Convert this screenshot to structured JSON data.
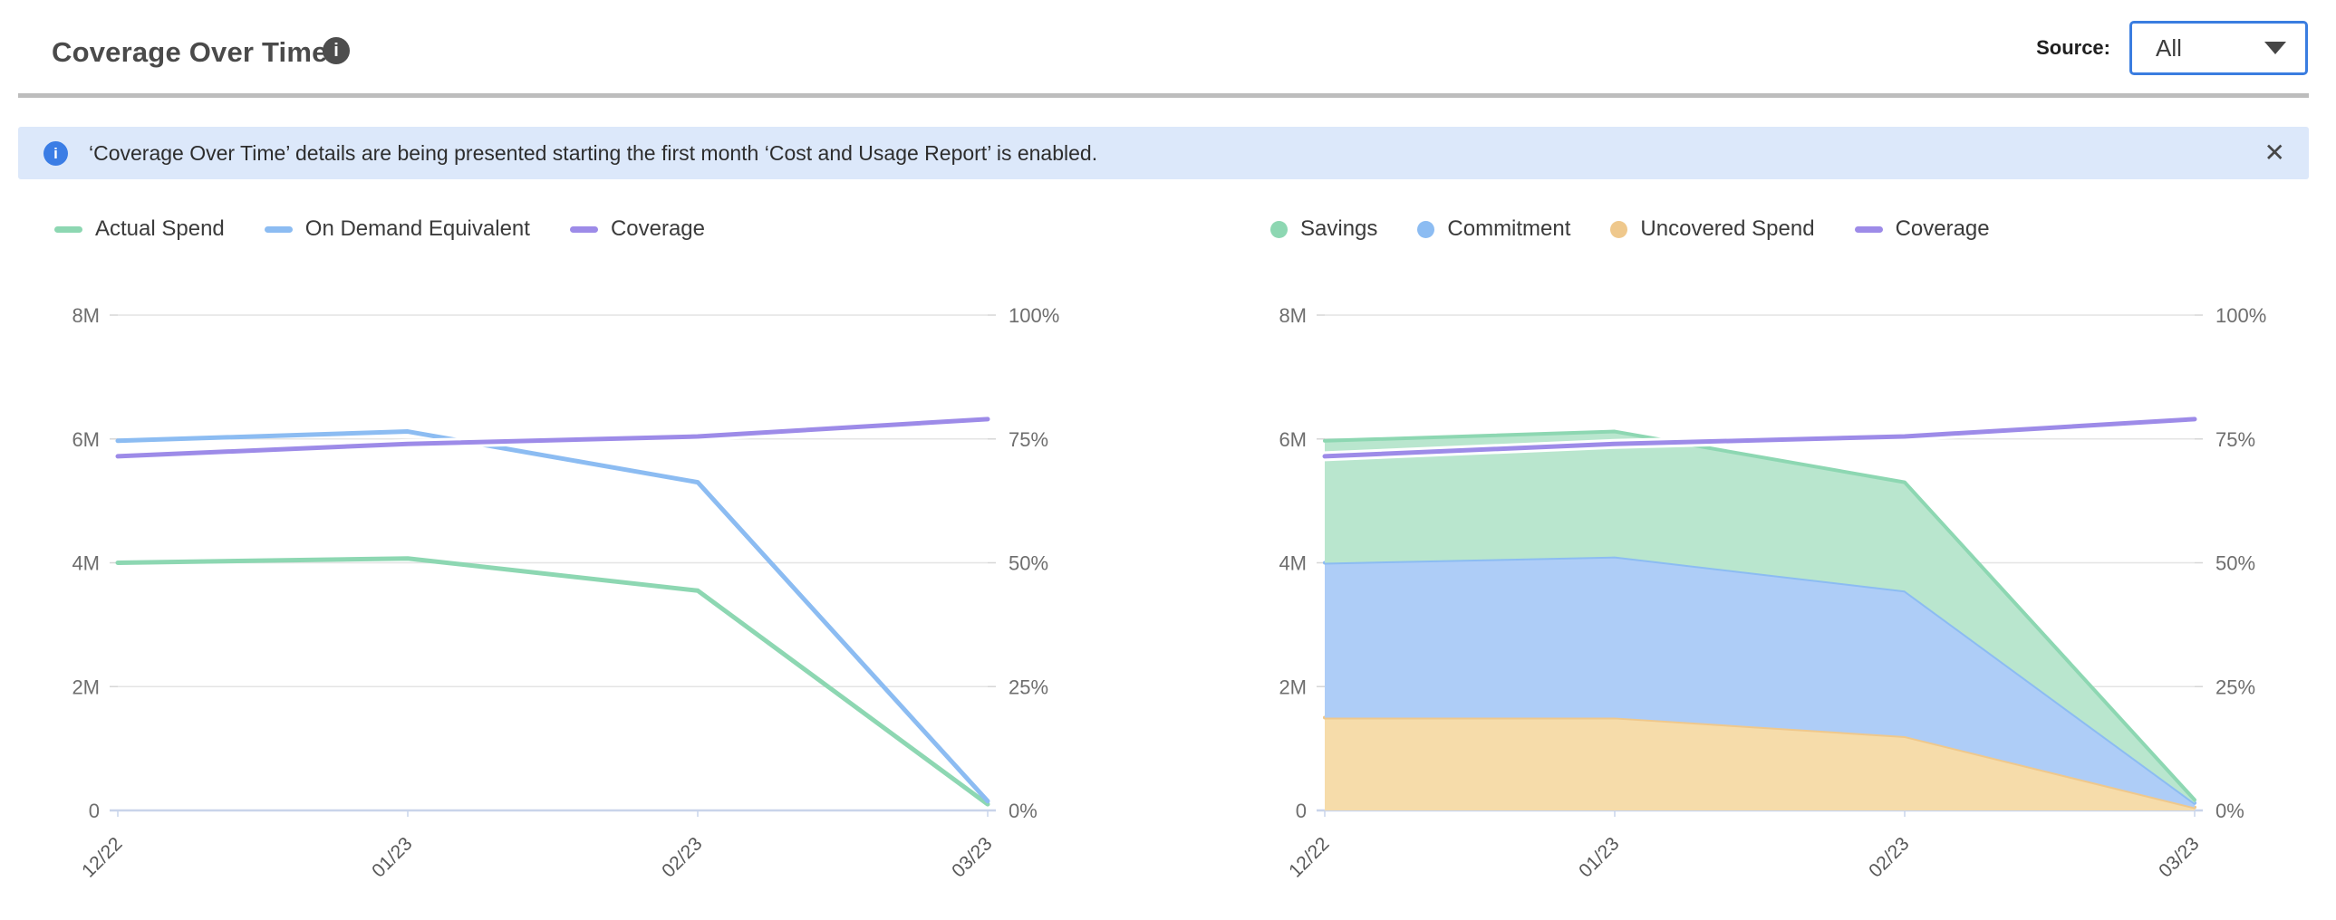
{
  "header": {
    "title": "Coverage Over Time",
    "source_label": "Source:",
    "source_value": "All"
  },
  "banner": {
    "text": "‘Coverage Over Time’ details are being presented starting the first month ‘Cost and Usage Report’ is enabled.",
    "close_glyph": "✕"
  },
  "colors": {
    "accent_blue": "#3a7de0",
    "banner_background": "#dce8fa",
    "banner_icon_blue": "#3b7de5",
    "title_text": "#4a4a4a",
    "divider_gray": "#bdbdbd",
    "gridline": "#e4e4e4",
    "baseline_axis": "#c9d4ea"
  },
  "chart_data": [
    {
      "type": "line",
      "title": "Coverage Over Time - spend lines",
      "x": [
        "12/22",
        "01/23",
        "02/23",
        "03/23"
      ],
      "series": [
        {
          "name": "Actual Spend",
          "yaxis": "left",
          "unit": "M",
          "color": "#8dd7b2",
          "values_millions": [
            4.0,
            4.07,
            3.55,
            0.1
          ]
        },
        {
          "name": "On Demand Equivalent",
          "yaxis": "left",
          "unit": "M",
          "color": "#8cbcf2",
          "values_millions": [
            5.97,
            6.12,
            5.3,
            0.15
          ]
        },
        {
          "name": "Coverage",
          "yaxis": "right",
          "unit": "%",
          "color": "#9d8be8",
          "values_percent": [
            71.5,
            74,
            75.5,
            79
          ]
        }
      ],
      "left_axis": {
        "max_millions": 8,
        "ticks": [
          {
            "value": 8,
            "label": "8M"
          },
          {
            "value": 6,
            "label": "6M"
          },
          {
            "value": 4,
            "label": "4M"
          },
          {
            "value": 2,
            "label": "2M"
          },
          {
            "value": 0,
            "label": "0"
          }
        ]
      },
      "right_axis": {
        "max_percent": 100,
        "ticks": [
          {
            "value": 100,
            "label": "100%"
          },
          {
            "value": 75,
            "label": "75%"
          },
          {
            "value": 50,
            "label": "50%"
          },
          {
            "value": 25,
            "label": "25%"
          },
          {
            "value": 0,
            "label": "0%"
          }
        ]
      },
      "grid": true,
      "legend_position": "top-left"
    },
    {
      "type": "area",
      "stacked": true,
      "title": "Coverage Over Time - savings breakdown",
      "x": [
        "12/22",
        "01/23",
        "02/23",
        "03/23"
      ],
      "series": [
        {
          "name": "Uncovered Spend",
          "yaxis": "left",
          "unit": "M",
          "color": "#efc88c",
          "fill": "#f6dcaa",
          "values_millions": [
            1.5,
            1.5,
            1.2,
            0.05
          ]
        },
        {
          "name": "Commitment",
          "yaxis": "left",
          "unit": "M",
          "color": "#8cbcf2",
          "fill": "#aecdf7",
          "values_millions": [
            2.5,
            2.6,
            2.35,
            0.07
          ]
        },
        {
          "name": "Savings",
          "yaxis": "left",
          "unit": "M",
          "color": "#8dd7b2",
          "fill": "#b9e6ce",
          "values_millions": [
            1.97,
            2.02,
            1.75,
            0.05
          ]
        },
        {
          "name": "Coverage",
          "yaxis": "right",
          "unit": "%",
          "color": "#9d8be8",
          "values_percent": [
            71.5,
            74,
            75.5,
            79
          ]
        }
      ],
      "left_axis": {
        "max_millions": 8,
        "ticks": [
          {
            "value": 8,
            "label": "8M"
          },
          {
            "value": 6,
            "label": "6M"
          },
          {
            "value": 4,
            "label": "4M"
          },
          {
            "value": 2,
            "label": "2M"
          },
          {
            "value": 0,
            "label": "0"
          }
        ]
      },
      "right_axis": {
        "max_percent": 100,
        "ticks": [
          {
            "value": 100,
            "label": "100%"
          },
          {
            "value": 75,
            "label": "75%"
          },
          {
            "value": 50,
            "label": "50%"
          },
          {
            "value": 25,
            "label": "25%"
          },
          {
            "value": 0,
            "label": "0%"
          }
        ]
      },
      "grid": true,
      "legend_position": "top-left"
    }
  ]
}
